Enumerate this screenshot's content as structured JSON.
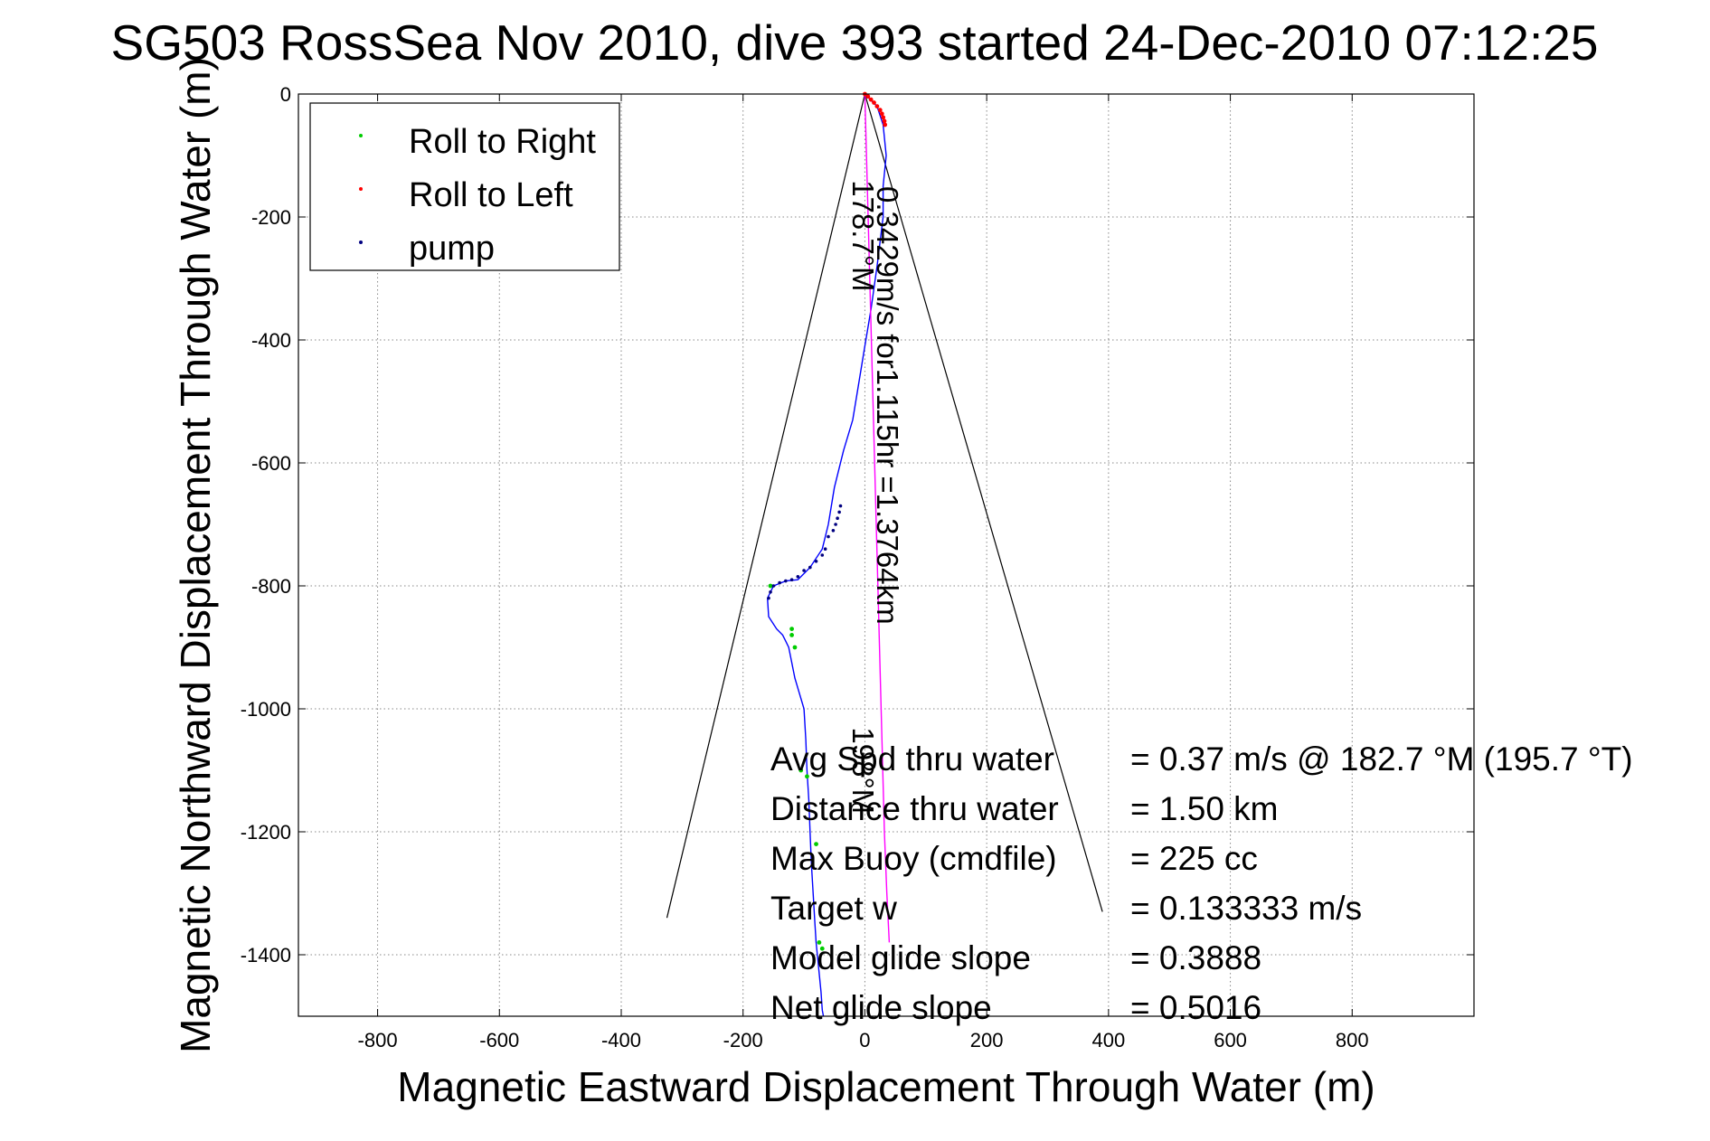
{
  "chart_data": {
    "type": "line",
    "title": "SG503 RossSea Nov 2010, dive 393 started 24-Dec-2010 07:12:25",
    "xlabel": "Magnetic Eastward Displacement Through Water (m)",
    "ylabel": "Magnetic Northward Displacement Through Water (m)",
    "xlim": [
      -930,
      1000
    ],
    "ylim": [
      -1500,
      0
    ],
    "x_ticks": [
      -800,
      -600,
      -400,
      -200,
      0,
      200,
      400,
      600,
      800
    ],
    "y_ticks": [
      0,
      -200,
      -400,
      -600,
      -800,
      -1000,
      -1200,
      -1400
    ],
    "grid": true,
    "legend": {
      "position": "top-left",
      "entries": [
        {
          "label": "Roll to Right",
          "color": "#00cc00"
        },
        {
          "label": "Roll to Left",
          "color": "#ff0000"
        },
        {
          "label": "pump",
          "color": "#000080"
        }
      ]
    },
    "series": [
      {
        "type": "line",
        "color": "#0000ff",
        "x": [
          0,
          20,
          30,
          35,
          30,
          30,
          20,
          10,
          0,
          -10,
          -20,
          -35,
          -50,
          -60,
          -70,
          -90,
          -110,
          -130,
          -150,
          -160,
          -158,
          -145,
          -135,
          -130,
          -125,
          -115,
          -100,
          -97,
          -95,
          -92,
          -90,
          -88,
          -85,
          -82,
          -80,
          -76,
          -72,
          -70,
          -68
        ],
        "y": [
          0,
          -20,
          -50,
          -100,
          -150,
          -200,
          -280,
          -350,
          -410,
          -470,
          -530,
          -580,
          -640,
          -700,
          -740,
          -770,
          -790,
          -792,
          -800,
          -820,
          -850,
          -870,
          -880,
          -890,
          -900,
          -950,
          -1000,
          -1050,
          -1100,
          -1150,
          -1200,
          -1250,
          -1300,
          -1350,
          -1380,
          -1420,
          -1460,
          -1490,
          -1500
        ]
      },
      {
        "type": "line",
        "color": "#ff00ff",
        "x": [
          0,
          4,
          8,
          12,
          16,
          20,
          24,
          28,
          32,
          36,
          40
        ],
        "y": [
          0,
          -150,
          -300,
          -450,
          -600,
          -750,
          -900,
          -1050,
          -1200,
          -1300,
          -1380
        ]
      }
    ],
    "cone_lines": [
      {
        "x": [
          0,
          -325
        ],
        "y": [
          0,
          -1340
        ],
        "color": "#000000"
      },
      {
        "x": [
          0,
          390
        ],
        "y": [
          0,
          -1330
        ],
        "color": "#000000"
      }
    ],
    "roll_left_points": {
      "x": [
        0,
        5,
        10,
        15,
        20,
        25,
        28,
        30,
        32,
        33
      ],
      "y": [
        0,
        -4,
        -9,
        -14,
        -20,
        -26,
        -32,
        -38,
        -44,
        -50
      ]
    },
    "roll_right_points": {
      "x": [
        -155,
        -120,
        -120,
        -115,
        -105,
        -95,
        -80,
        -75,
        -70
      ],
      "y": [
        -800,
        -870,
        -880,
        -900,
        -1100,
        -1110,
        -1220,
        -1380,
        -1390
      ]
    },
    "pump_points": {
      "x": [
        -40,
        -42,
        -45,
        -48,
        -52,
        -60,
        -65,
        -70,
        -80,
        -90,
        -100,
        -110,
        -120,
        -130,
        -140,
        -150,
        -155,
        -158
      ],
      "y": [
        -670,
        -680,
        -690,
        -700,
        -710,
        -720,
        -740,
        -750,
        -760,
        -770,
        -775,
        -785,
        -790,
        -792,
        -795,
        -800,
        -810,
        -820
      ]
    },
    "annotations": [
      {
        "text": "0.3429m/s for1.115hr =1.3764km",
        "x": 20,
        "y": -150,
        "rotate": 90
      },
      {
        "text": "178.7°M",
        "x": -20,
        "y": -140,
        "rotate": 90
      },
      {
        "text": "198°M",
        "x": -20,
        "y": -1030,
        "rotate": 90
      }
    ],
    "stats": [
      {
        "label": "Avg Spd thru water",
        "value": "=  0.37 m/s @ 182.7 °M (195.7 °T)"
      },
      {
        "label": "Distance thru water",
        "value": "=  1.50 km"
      },
      {
        "label": "Max Buoy (cmdfile)",
        "value": "= 225 cc"
      },
      {
        "label": "Target w",
        "value": "= 0.133333 m/s"
      },
      {
        "label": "Model glide slope",
        "value": "= 0.3888"
      },
      {
        "label": "Net glide slope",
        "value": "= 0.5016"
      }
    ]
  }
}
